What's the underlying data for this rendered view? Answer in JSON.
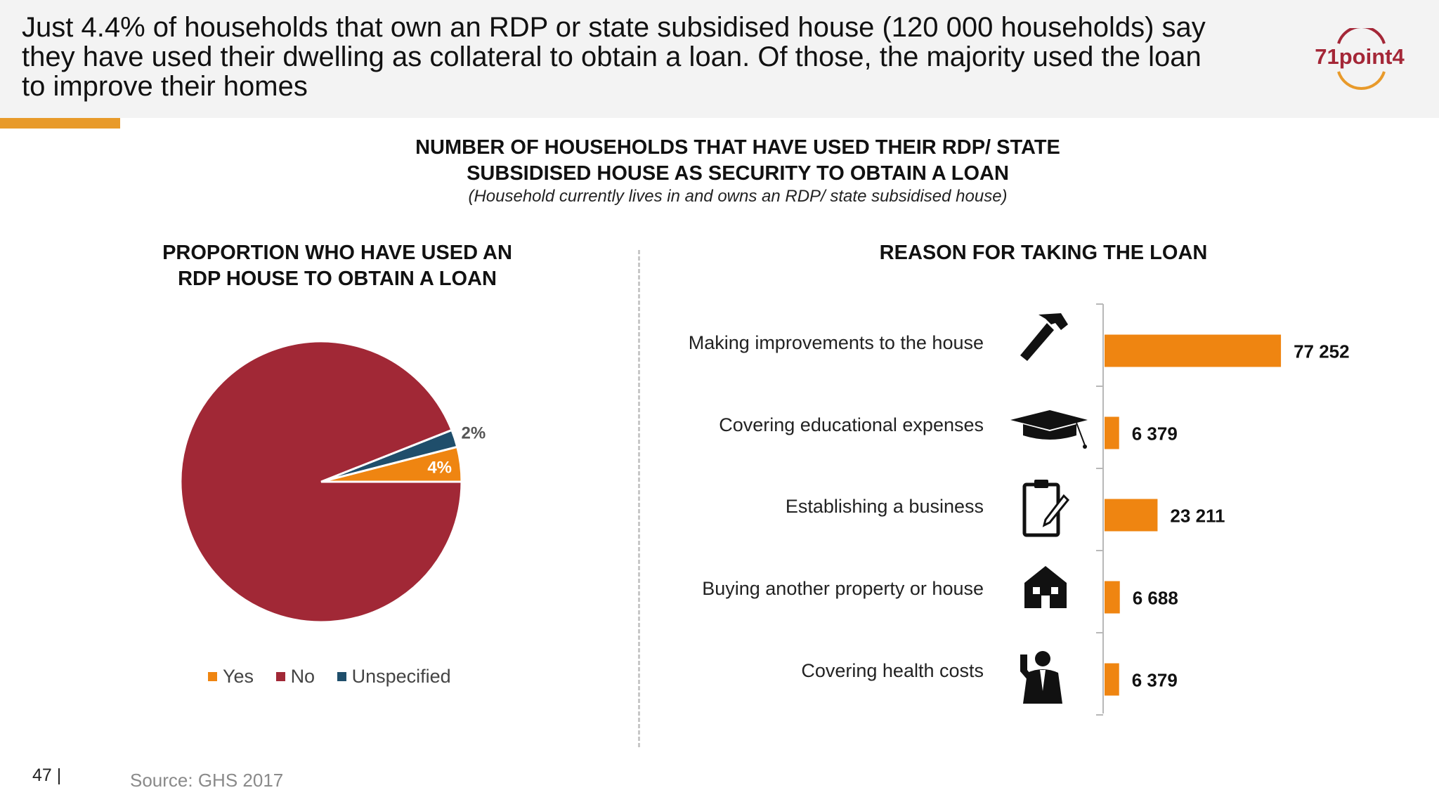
{
  "headline": {
    "line1": "Just 4.4% of households that own an RDP or state subsidised house (120 000 households) say",
    "line2": "they have used their dwelling as collateral to obtain a loan. Of those, the majority used the loan",
    "line3": "to improve their homes"
  },
  "logo": {
    "text": "71point4",
    "icon": "71point4-logo",
    "accent": "#e89a2a",
    "brand": "#a42737"
  },
  "main_title": {
    "line1": "NUMBER OF HOUSEHOLDS THAT HAVE USED THEIR RDP/ STATE",
    "line2": "SUBSIDISED HOUSE AS SECURITY TO OBTAIN A LOAN",
    "subtitle": "(Household currently lives in and owns an RDP/ state subsidised house)"
  },
  "colors": {
    "yes": "#ef8511",
    "no": "#a12836",
    "unspecified": "#1f4e6b",
    "bar": "#ef8511"
  },
  "chart_data": [
    {
      "type": "pie",
      "title": "PROPORTION WHO HAVE USED AN RDP HOUSE TO OBTAIN A LOAN",
      "title_line1": "PROPORTION WHO HAVE USED AN",
      "title_line2": "RDP HOUSE TO OBTAIN A LOAN",
      "slices": [
        {
          "name": "Yes",
          "value": 4,
          "label": "4%",
          "color": "#ef8511"
        },
        {
          "name": "Unspecified",
          "value": 2,
          "label": "2%",
          "color": "#1f4e6b"
        },
        {
          "name": "No",
          "value": 94,
          "label": "",
          "color": "#a12836"
        }
      ],
      "legend": [
        "Yes",
        "No",
        "Unspecified"
      ],
      "legend_position": "bottom"
    },
    {
      "type": "bar",
      "orientation": "horizontal",
      "title": "REASON FOR TAKING THE LOAN",
      "categories": [
        "Making improvements to the house",
        "Covering educational expenses",
        "Establishing a business",
        "Buying another property or house",
        "Covering health costs"
      ],
      "icons": [
        "hammer-icon",
        "graduation-cap-icon",
        "clipboard-icon",
        "house-icon",
        "doctor-icon"
      ],
      "values": [
        77252,
        6379,
        23211,
        6688,
        6379
      ],
      "value_labels": [
        "77 252",
        "6 379",
        "23 211",
        "6 688",
        "6 379"
      ],
      "xlim": [
        0,
        80000
      ]
    }
  ],
  "footer": {
    "page": "47 |",
    "source": "Source: GHS 2017"
  }
}
